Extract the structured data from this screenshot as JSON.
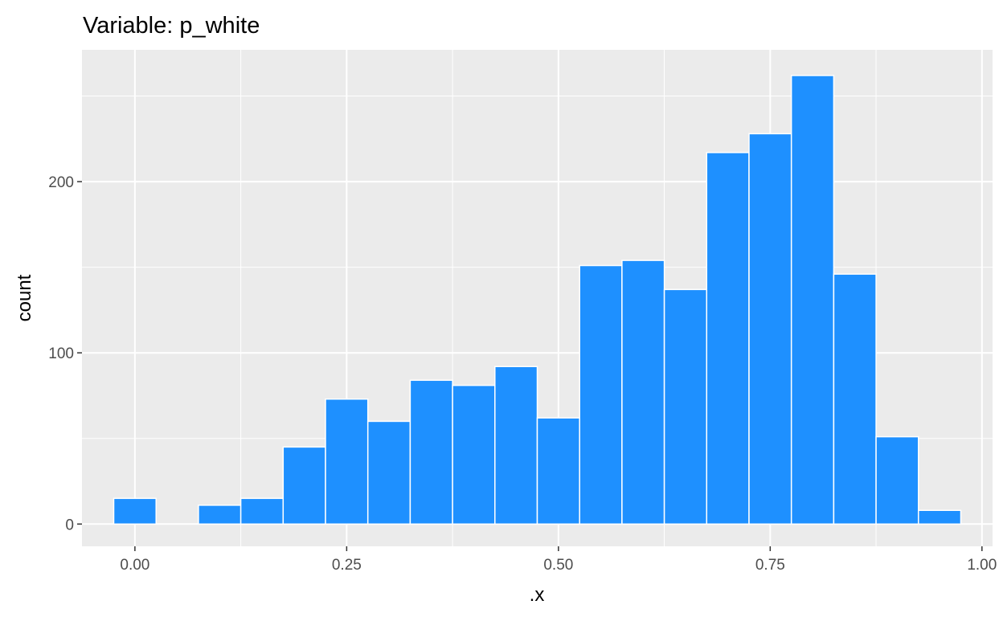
{
  "chart_data": {
    "type": "bar",
    "title": "Variable: p_white",
    "xlabel": ".x",
    "ylabel": "count",
    "bin_width": 0.05,
    "bin_centers": [
      0.0,
      0.05,
      0.1,
      0.15,
      0.2,
      0.25,
      0.3,
      0.35,
      0.4,
      0.45,
      0.5,
      0.55,
      0.6,
      0.65,
      0.7,
      0.75,
      0.8,
      0.85,
      0.9,
      0.95
    ],
    "values": [
      15,
      0,
      11,
      15,
      45,
      73,
      60,
      84,
      81,
      92,
      62,
      151,
      154,
      137,
      217,
      228,
      262,
      146,
      51,
      8
    ],
    "xlim": [
      -0.0625,
      1.0125
    ],
    "ylim": [
      -13,
      277
    ],
    "x_ticks": [
      0.0,
      0.25,
      0.5,
      0.75,
      1.0
    ],
    "x_tick_labels": [
      "0.00",
      "0.25",
      "0.50",
      "0.75",
      "1.00"
    ],
    "y_ticks": [
      0,
      100,
      200
    ],
    "y_tick_labels": [
      "0",
      "100",
      "200"
    ],
    "bar_fill": "#1E90FF",
    "bar_outline": "#FFFFFF",
    "panel_background": "#EBEBEB",
    "grid_color": "#FFFFFF",
    "grid": true,
    "legend": "none"
  }
}
